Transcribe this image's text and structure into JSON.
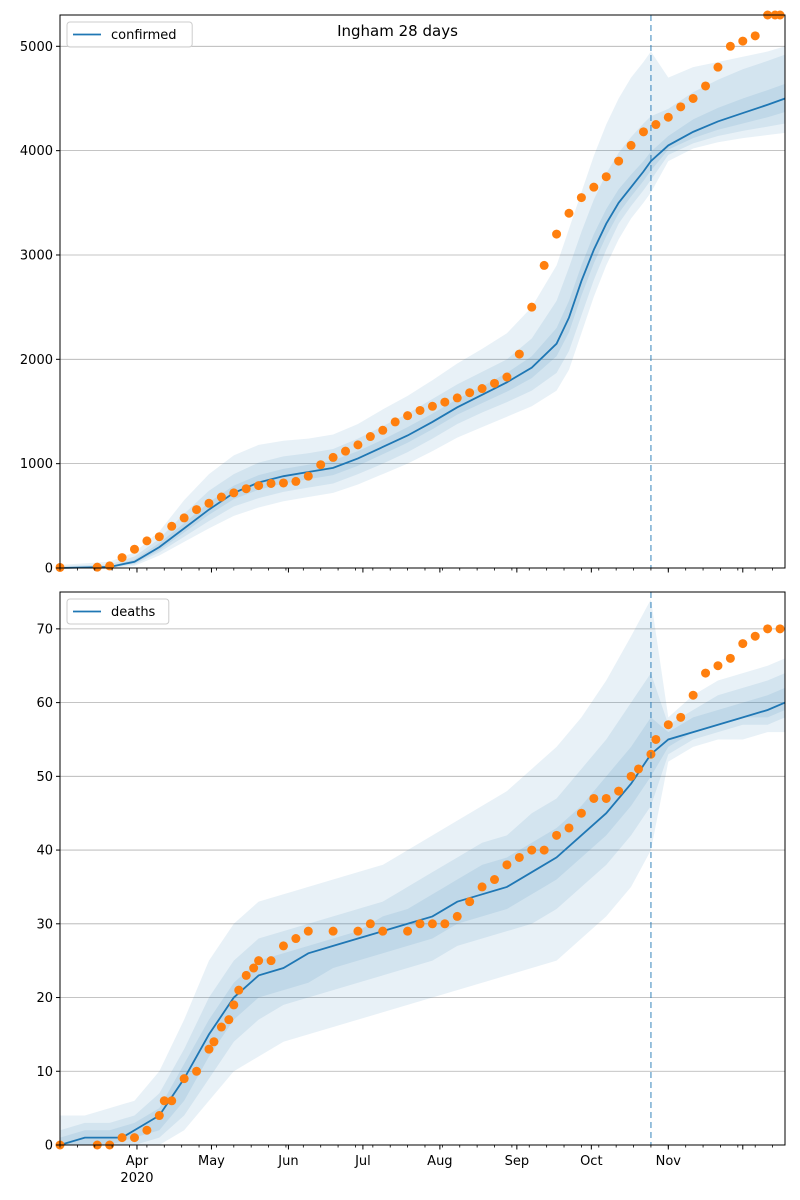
{
  "chart_data": [
    {
      "type": "line",
      "title": "Ingham 28 days",
      "legend": {
        "label": "confirmed",
        "placement": "top-left"
      },
      "grid": "y",
      "ylim": [
        0,
        5300
      ],
      "yticks": [
        0,
        1000,
        2000,
        3000,
        4000,
        5000
      ],
      "xticks_major": [
        "Apr",
        "May",
        "Jun",
        "Jul",
        "Aug",
        "Sep",
        "Oct",
        "Nov"
      ],
      "year_label": "2020",
      "xlim_days": [
        0,
        292
      ],
      "forecast_start_day": 238,
      "colors": {
        "model": "#1f77b4",
        "observed": "#ff7f0e",
        "band": "#1f77b4"
      },
      "model": {
        "x": [
          0,
          20,
          30,
          40,
          50,
          60,
          70,
          80,
          90,
          100,
          110,
          120,
          130,
          140,
          150,
          160,
          170,
          180,
          190,
          200,
          205,
          210,
          215,
          220,
          225,
          230,
          235,
          238,
          245,
          255,
          265,
          275,
          285,
          292
        ],
        "y": [
          0,
          10,
          60,
          200,
          380,
          560,
          720,
          820,
          880,
          920,
          960,
          1050,
          1160,
          1270,
          1400,
          1540,
          1660,
          1780,
          1920,
          2150,
          2400,
          2750,
          3050,
          3300,
          3500,
          3650,
          3800,
          3900,
          4050,
          4180,
          4280,
          4360,
          4440,
          4500
        ]
      },
      "bands": [
        {
          "x": [
            0,
            20,
            30,
            40,
            50,
            60,
            70,
            80,
            90,
            100,
            110,
            120,
            130,
            140,
            150,
            160,
            170,
            180,
            190,
            200,
            205,
            210,
            215,
            220,
            225,
            230,
            235,
            238,
            245,
            255,
            265,
            275,
            285,
            292
          ],
          "lo": [
            0,
            0,
            20,
            120,
            250,
            380,
            500,
            580,
            640,
            680,
            720,
            800,
            900,
            1000,
            1120,
            1250,
            1350,
            1450,
            1550,
            1700,
            1900,
            2250,
            2600,
            2900,
            3150,
            3350,
            3500,
            3600,
            3900,
            4020,
            4080,
            4120,
            4150,
            4170
          ],
          "hi": [
            30,
            60,
            150,
            350,
            650,
            900,
            1080,
            1180,
            1220,
            1240,
            1280,
            1380,
            1520,
            1650,
            1800,
            1960,
            2100,
            2250,
            2500,
            2900,
            3250,
            3600,
            3950,
            4250,
            4500,
            4700,
            4850,
            4950,
            4700,
            4800,
            4850,
            4900,
            4950,
            5000
          ]
        },
        {
          "x": [
            0,
            20,
            30,
            40,
            50,
            60,
            70,
            80,
            90,
            100,
            110,
            120,
            130,
            140,
            150,
            160,
            170,
            180,
            190,
            200,
            205,
            210,
            215,
            220,
            225,
            230,
            235,
            238,
            245,
            255,
            265,
            275,
            285,
            292
          ],
          "lo": [
            0,
            3,
            35,
            150,
            300,
            450,
            590,
            670,
            730,
            770,
            810,
            900,
            1000,
            1110,
            1240,
            1380,
            1490,
            1590,
            1700,
            1870,
            2080,
            2420,
            2760,
            3050,
            3300,
            3470,
            3620,
            3720,
            3960,
            4070,
            4140,
            4190,
            4230,
            4260
          ],
          "hi": [
            18,
            35,
            110,
            280,
            520,
            740,
            900,
            1010,
            1070,
            1100,
            1140,
            1240,
            1360,
            1480,
            1620,
            1760,
            1880,
            2000,
            2200,
            2560,
            2880,
            3220,
            3530,
            3780,
            3980,
            4130,
            4260,
            4330,
            4400,
            4560,
            4680,
            4780,
            4860,
            4920
          ]
        },
        {
          "x": [
            0,
            20,
            30,
            40,
            50,
            60,
            70,
            80,
            90,
            100,
            110,
            120,
            130,
            140,
            150,
            160,
            170,
            180,
            190,
            200,
            205,
            210,
            215,
            220,
            225,
            230,
            235,
            238,
            245,
            255,
            265,
            275,
            285,
            292
          ],
          "lo": [
            0,
            6,
            45,
            170,
            340,
            510,
            660,
            750,
            810,
            850,
            890,
            980,
            1090,
            1200,
            1330,
            1470,
            1580,
            1690,
            1820,
            2030,
            2260,
            2610,
            2920,
            3180,
            3400,
            3560,
            3710,
            3810,
            4010,
            4120,
            4200,
            4260,
            4320,
            4370
          ],
          "hi": [
            8,
            18,
            80,
            240,
            430,
            630,
            790,
            890,
            950,
            990,
            1030,
            1120,
            1230,
            1350,
            1480,
            1620,
            1740,
            1870,
            2030,
            2300,
            2560,
            2900,
            3200,
            3440,
            3630,
            3770,
            3900,
            3990,
            4140,
            4300,
            4410,
            4500,
            4580,
            4640
          ]
        }
      ],
      "observed": {
        "x": [
          0,
          15,
          20,
          25,
          30,
          35,
          40,
          45,
          50,
          55,
          60,
          65,
          70,
          75,
          80,
          85,
          90,
          95,
          100,
          105,
          110,
          115,
          120,
          125,
          130,
          135,
          140,
          145,
          150,
          155,
          160,
          165,
          170,
          175,
          180,
          185,
          190,
          195,
          200,
          205,
          210,
          215,
          220,
          225,
          230,
          235,
          240,
          245,
          250,
          255,
          260,
          265,
          270,
          275,
          280,
          285,
          288,
          290
        ],
        "y": [
          5,
          8,
          20,
          100,
          180,
          260,
          300,
          400,
          480,
          560,
          620,
          680,
          720,
          760,
          790,
          810,
          815,
          830,
          880,
          990,
          1060,
          1120,
          1180,
          1260,
          1320,
          1400,
          1460,
          1510,
          1550,
          1590,
          1630,
          1680,
          1720,
          1770,
          1830,
          2050,
          2500,
          2900,
          3200,
          3400,
          3550,
          3650,
          3750,
          3900,
          4050,
          4180,
          4250,
          4320,
          4420,
          4500,
          4620,
          4800,
          5000,
          5050,
          5100,
          5300,
          5300,
          5300
        ]
      }
    },
    {
      "type": "line",
      "title": "",
      "legend": {
        "label": "deaths",
        "placement": "top-left"
      },
      "grid": "y",
      "ylim": [
        0,
        75
      ],
      "yticks": [
        0,
        10,
        20,
        30,
        40,
        50,
        60,
        70
      ],
      "xticks_major": [
        "Apr",
        "May",
        "Jun",
        "Jul",
        "Aug",
        "Sep",
        "Oct",
        "Nov"
      ],
      "year_label": "2020",
      "xlim_days": [
        0,
        292
      ],
      "forecast_start_day": 238,
      "colors": {
        "model": "#1f77b4",
        "observed": "#ff7f0e",
        "band": "#1f77b4"
      },
      "model": {
        "x": [
          0,
          10,
          20,
          25,
          30,
          40,
          50,
          60,
          70,
          80,
          90,
          100,
          110,
          120,
          130,
          140,
          150,
          160,
          170,
          180,
          190,
          200,
          210,
          220,
          230,
          238,
          245,
          255,
          265,
          275,
          285,
          292
        ],
        "y": [
          0,
          1,
          1,
          1,
          2,
          4,
          9,
          15,
          20,
          23,
          24,
          26,
          27,
          28,
          29,
          30,
          31,
          33,
          34,
          35,
          37,
          39,
          42,
          45,
          49,
          53,
          55,
          56,
          57,
          58,
          59,
          60
        ]
      },
      "bands": [
        {
          "x": [
            0,
            10,
            20,
            30,
            40,
            50,
            60,
            70,
            80,
            90,
            100,
            110,
            120,
            130,
            140,
            150,
            160,
            170,
            180,
            190,
            200,
            210,
            220,
            230,
            238,
            245,
            255,
            265,
            275,
            285,
            292
          ],
          "lo": [
            0,
            0,
            0,
            0,
            0,
            2,
            6,
            10,
            12,
            14,
            15,
            16,
            17,
            18,
            19,
            20,
            21,
            22,
            23,
            24,
            25,
            28,
            31,
            35,
            40,
            52,
            54,
            55,
            55,
            56,
            56
          ],
          "hi": [
            4,
            4,
            5,
            6,
            10,
            17,
            25,
            30,
            33,
            34,
            35,
            36,
            37,
            38,
            40,
            42,
            44,
            46,
            48,
            51,
            54,
            58,
            63,
            69,
            74,
            58,
            61,
            63,
            64,
            65,
            66
          ]
        },
        {
          "x": [
            0,
            10,
            20,
            30,
            40,
            50,
            60,
            70,
            80,
            90,
            100,
            110,
            120,
            130,
            140,
            150,
            160,
            170,
            180,
            190,
            200,
            210,
            220,
            230,
            238,
            245,
            255,
            265,
            275,
            285,
            292
          ],
          "lo": [
            0,
            0,
            0,
            0,
            1,
            4,
            9,
            14,
            17,
            19,
            20,
            21,
            22,
            23,
            24,
            25,
            27,
            28,
            29,
            30,
            32,
            35,
            38,
            42,
            46,
            53,
            55,
            56,
            57,
            57,
            58
          ],
          "hi": [
            2,
            3,
            3,
            4,
            7,
            13,
            20,
            25,
            28,
            29,
            30,
            31,
            32,
            33,
            35,
            37,
            39,
            41,
            42,
            45,
            47,
            51,
            55,
            60,
            64,
            57,
            59,
            61,
            62,
            63,
            64
          ]
        },
        {
          "x": [
            0,
            10,
            20,
            30,
            40,
            50,
            60,
            70,
            80,
            90,
            100,
            110,
            120,
            130,
            140,
            150,
            160,
            170,
            180,
            190,
            200,
            210,
            220,
            230,
            238,
            245,
            255,
            265,
            275,
            285,
            292
          ],
          "lo": [
            0,
            0,
            0,
            1,
            2,
            6,
            12,
            17,
            20,
            21,
            22,
            24,
            25,
            26,
            27,
            28,
            30,
            31,
            32,
            34,
            36,
            39,
            42,
            46,
            50,
            54,
            56,
            57,
            58,
            58,
            59
          ],
          "hi": [
            1,
            2,
            2,
            3,
            5,
            11,
            17,
            22,
            25,
            26,
            27,
            28,
            29,
            31,
            32,
            34,
            36,
            38,
            39,
            41,
            43,
            46,
            50,
            54,
            58,
            56,
            58,
            59,
            60,
            61,
            62
          ]
        }
      ],
      "observed": {
        "x": [
          0,
          15,
          20,
          25,
          30,
          35,
          40,
          42,
          45,
          50,
          55,
          60,
          62,
          65,
          68,
          70,
          72,
          75,
          78,
          80,
          85,
          90,
          95,
          100,
          110,
          120,
          125,
          130,
          140,
          145,
          150,
          155,
          160,
          165,
          170,
          175,
          180,
          185,
          190,
          195,
          200,
          205,
          210,
          215,
          220,
          225,
          230,
          233,
          238,
          240,
          245,
          250,
          255,
          260,
          265,
          270,
          275,
          280,
          285,
          290
        ],
        "y": [
          0,
          0,
          0,
          1,
          1,
          2,
          4,
          6,
          6,
          9,
          10,
          13,
          14,
          16,
          17,
          19,
          21,
          23,
          24,
          25,
          25,
          27,
          28,
          29,
          29,
          29,
          30,
          29,
          29,
          30,
          30,
          30,
          31,
          33,
          35,
          36,
          38,
          39,
          40,
          40,
          42,
          43,
          45,
          47,
          47,
          48,
          50,
          51,
          53,
          55,
          57,
          58,
          61,
          64,
          65,
          66,
          68,
          69,
          70,
          70
        ]
      }
    }
  ]
}
